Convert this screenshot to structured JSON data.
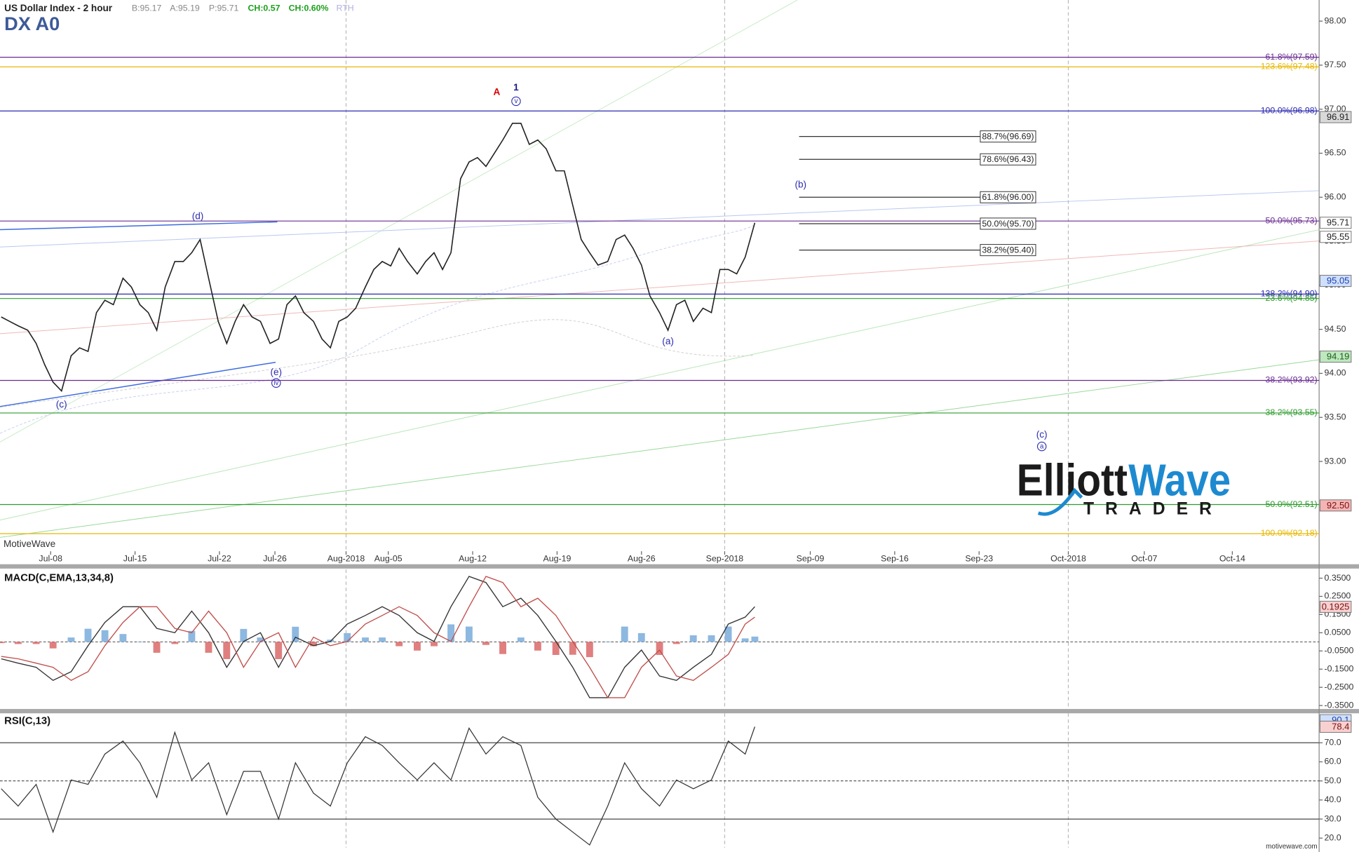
{
  "header": {
    "title": "US Dollar Index - 2 hour",
    "bid": "B:95.17",
    "ask": "A:95.19",
    "price": "P:95.71",
    "change": "CH:0.57",
    "change_pct": "CH:0.60%",
    "session": "RTH",
    "source": "MotiveWave",
    "site": "motivewave.com"
  },
  "logo": {
    "word1": "Elliott",
    "word2": "Wave",
    "word3": "TRADER"
  },
  "chart_data": [
    {
      "type": "line",
      "title": "DX A0",
      "color": "#222222",
      "x": [
        -4.1,
        -3.4,
        -2.7,
        -1.9,
        -1.2,
        -0.5,
        0.2,
        0.9,
        1.7,
        2.4,
        3.1,
        3.8,
        4.5,
        5.2,
        6.0,
        6.7,
        7.4,
        8.1,
        8.8,
        9.5,
        10.3,
        11.0,
        11.7,
        12.4,
        13.1,
        13.9,
        14.6,
        15.3,
        16.0,
        16.7,
        17.4,
        18.2,
        18.9,
        19.6,
        20.3,
        21.0,
        21.8,
        22.5,
        23.2,
        23.9,
        24.6,
        25.3,
        26.1,
        26.8,
        27.5,
        28.2,
        28.9,
        29.6,
        30.4,
        31.1,
        31.8,
        32.5,
        33.2,
        34.0,
        34.7,
        35.4,
        36.1,
        36.8,
        37.5,
        38.3,
        39.0,
        39.7,
        40.4,
        41.1,
        41.9,
        42.6,
        43.3,
        44.0,
        44.7,
        45.4,
        46.2,
        46.9,
        47.6,
        48.3,
        49.0,
        49.7,
        50.5,
        51.2,
        51.9,
        52.6,
        53.3,
        54.1,
        54.8,
        55.5,
        56.2,
        56.9,
        57.6,
        58.4
      ],
      "values": [
        94.64,
        94.59,
        94.54,
        94.49,
        94.34,
        94.1,
        93.9,
        93.8,
        94.2,
        94.29,
        94.25,
        94.69,
        94.83,
        94.78,
        95.08,
        94.98,
        94.78,
        94.69,
        94.49,
        94.98,
        95.27,
        95.27,
        95.37,
        95.52,
        95.08,
        94.59,
        94.34,
        94.59,
        94.78,
        94.64,
        94.59,
        94.34,
        94.39,
        94.78,
        94.88,
        94.69,
        94.59,
        94.39,
        94.29,
        94.59,
        94.64,
        94.74,
        94.98,
        95.18,
        95.27,
        95.22,
        95.42,
        95.27,
        95.13,
        95.27,
        95.37,
        95.18,
        95.37,
        96.21,
        96.4,
        96.45,
        96.35,
        96.5,
        96.65,
        96.84,
        96.84,
        96.6,
        96.65,
        96.55,
        96.3,
        96.3,
        95.91,
        95.52,
        95.37,
        95.23,
        95.27,
        95.52,
        95.57,
        95.42,
        95.23,
        94.88,
        94.69,
        94.49,
        94.78,
        94.83,
        94.59,
        94.74,
        94.69,
        95.18,
        95.18,
        95.13,
        95.32,
        95.71
      ],
      "xlim": [
        -4.2,
        105.2
      ],
      "xticks": [
        {
          "value": 0,
          "label": "Jul-08"
        },
        {
          "value": 7,
          "label": "Jul-15"
        },
        {
          "value": 14,
          "label": "Jul-22"
        },
        {
          "value": 18.6,
          "label": "Jul-26"
        },
        {
          "value": 24.5,
          "label": "Aug-2018"
        },
        {
          "value": 28,
          "label": "Aug-05"
        },
        {
          "value": 35,
          "label": "Aug-12"
        },
        {
          "value": 42,
          "label": "Aug-19"
        },
        {
          "value": 49,
          "label": "Aug-26"
        },
        {
          "value": 55.9,
          "label": "Sep-2018"
        },
        {
          "value": 63,
          "label": "Sep-09"
        },
        {
          "value": 70,
          "label": "Sep-16"
        },
        {
          "value": 77,
          "label": "Sep-23"
        },
        {
          "value": 84.4,
          "label": "Oct-2018"
        },
        {
          "value": 90.7,
          "label": "Oct-07"
        },
        {
          "value": 98,
          "label": "Oct-14"
        }
      ],
      "ylim": [
        91.98,
        98.22
      ],
      "yticks": [
        {
          "value": 93,
          "label": "93.00"
        },
        {
          "value": 93.5,
          "label": "93.50"
        },
        {
          "value": 94,
          "label": "94.00"
        },
        {
          "value": 94.5,
          "label": "94.50"
        },
        {
          "value": 95,
          "label": "95.00"
        },
        {
          "value": 95.5,
          "label": "95.50"
        },
        {
          "value": 96,
          "label": "96.00"
        },
        {
          "value": 96.5,
          "label": "96.50"
        },
        {
          "value": 97,
          "label": "97.00"
        },
        {
          "value": 97.5,
          "label": "97.50"
        },
        {
          "value": 98,
          "label": "98.00"
        }
      ],
      "levels": [
        {
          "value": 97.59,
          "label": "61.8%(97.59)",
          "color": "#6a2c91"
        },
        {
          "value": 97.48,
          "label": "123.6%(97.48)",
          "color": "#e8b800"
        },
        {
          "value": 96.98,
          "label": "100.0%(96.98)",
          "color": "#2b2bb0"
        },
        {
          "value": 95.73,
          "label": "50.0%(95.73)",
          "color": "#6a2c91"
        },
        {
          "value": 94.9,
          "label": "138.2%(94.90)",
          "color": "#2b2bb0"
        },
        {
          "value": 94.85,
          "label": "23.6%(94.85)",
          "color": "#2e9b2e"
        },
        {
          "value": 93.92,
          "label": "38.2%(93.92)",
          "color": "#6a2c91"
        },
        {
          "value": 93.55,
          "label": "38.2%(93.55)",
          "color": "#2e9b2e"
        },
        {
          "value": 92.51,
          "label": "50.0%(92.51)",
          "color": "#2e9b2e"
        },
        {
          "value": 92.18,
          "label": "100.0%(92.18)",
          "color": "#e8b800"
        }
      ],
      "targets": [
        {
          "value": 96.69,
          "label": "88.7%(96.69)"
        },
        {
          "value": 96.43,
          "label": "78.6%(96.43)"
        },
        {
          "value": 96.0,
          "label": "61.8%(96.00)"
        },
        {
          "value": 95.7,
          "label": "50.0%(95.70)"
        },
        {
          "value": 95.4,
          "label": "38.2%(95.40)"
        }
      ],
      "price_tags": [
        {
          "value": 96.91,
          "label": "96.91",
          "color": "#d9d9d9",
          "text_color": "#222222"
        },
        {
          "value": 95.71,
          "label": "95.71",
          "color": "#ffffff",
          "text_color": "#222222"
        },
        {
          "value": 95.55,
          "label": "95.55",
          "color": "#ffffff",
          "text_color": "#222222"
        },
        {
          "value": 95.05,
          "label": "95.05",
          "color": "#cfe0ff",
          "text_color": "#1f3fa8"
        },
        {
          "value": 94.19,
          "label": "94.19",
          "color": "#bfe8bf",
          "text_color": "#1c5e1c"
        },
        {
          "value": 92.5,
          "label": "92.50",
          "color": "#f4b4b4",
          "text_color": "#7a1010"
        }
      ],
      "annotations": [
        {
          "text": "A",
          "x": 37.0,
          "y": 97.19,
          "color": "#dd0000",
          "circled": false
        },
        {
          "text": "1",
          "x": 38.6,
          "y": 97.24,
          "color": "#1a1a8c",
          "circled": false
        },
        {
          "text": "v",
          "x": 38.6,
          "y": 97.09,
          "color": "#2b2bb0",
          "circled": true
        },
        {
          "text": "(d)",
          "x": 12.2,
          "y": 95.78,
          "color": "#2b2bb0",
          "circled": false
        },
        {
          "text": "(c)",
          "x": 0.9,
          "y": 93.64,
          "color": "#2b2bb0",
          "circled": false
        },
        {
          "text": "(e)",
          "x": 18.7,
          "y": 94.01,
          "color": "#2b2bb0",
          "circled": false
        },
        {
          "text": "iv",
          "x": 18.7,
          "y": 93.89,
          "color": "#2b2bb0",
          "circled": true
        },
        {
          "text": "(a)",
          "x": 51.2,
          "y": 94.36,
          "color": "#2b2bb0",
          "circled": false
        },
        {
          "text": "(b)",
          "x": 62.2,
          "y": 96.14,
          "color": "#2b2bb0",
          "circled": false
        },
        {
          "text": "(c)",
          "x": 82.2,
          "y": 93.3,
          "color": "#2b2bb0",
          "circled": false
        },
        {
          "text": "a",
          "x": 82.2,
          "y": 93.17,
          "color": "#2b2bb0",
          "circled": true
        }
      ]
    },
    {
      "type": "macd",
      "title": "MACD(C,EMA,13,34,8)",
      "x": [
        -4.1,
        -2.7,
        -1.2,
        0.2,
        1.7,
        3.1,
        4.5,
        6.0,
        7.4,
        8.8,
        10.3,
        11.7,
        13.1,
        14.6,
        16.0,
        17.4,
        18.9,
        20.3,
        21.8,
        23.2,
        24.6,
        26.1,
        27.5,
        28.9,
        30.4,
        31.8,
        33.2,
        34.7,
        36.1,
        37.5,
        39.0,
        40.4,
        41.9,
        43.3,
        44.7,
        46.2,
        47.6,
        49.0,
        50.5,
        51.9,
        53.3,
        54.8,
        56.2,
        57.6,
        58.4
      ],
      "series": [
        {
          "color": "#333333",
          "values": [
            -0.093,
            -0.117,
            -0.14,
            -0.212,
            -0.164,
            -0.021,
            0.107,
            0.193,
            0.193,
            0.074,
            0.05,
            0.169,
            0.05,
            -0.14,
            0.002,
            0.05,
            -0.14,
            0.026,
            -0.021,
            0.002,
            0.098,
            0.145,
            0.193,
            0.145,
            0.05,
            0.002,
            0.193,
            0.36,
            0.326,
            0.193,
            0.24,
            0.145,
            0.002,
            -0.14,
            -0.307,
            -0.307,
            -0.14,
            -0.045,
            -0.188,
            -0.212,
            -0.14,
            -0.069,
            0.098,
            0.136,
            0.193
          ]
        },
        {
          "color": "#c0504d",
          "values": [
            -0.08,
            -0.093,
            -0.117,
            -0.14,
            -0.212,
            -0.164,
            -0.021,
            0.107,
            0.193,
            0.193,
            0.074,
            0.05,
            0.169,
            0.05,
            -0.14,
            0.002,
            0.05,
            -0.14,
            0.026,
            -0.021,
            0.002,
            0.098,
            0.145,
            0.193,
            0.145,
            0.05,
            0.002,
            0.193,
            0.36,
            0.326,
            0.193,
            0.24,
            0.145,
            0.002,
            -0.14,
            -0.307,
            -0.307,
            -0.14,
            -0.045,
            -0.188,
            -0.212,
            -0.14,
            -0.069,
            0.098,
            0.136
          ]
        }
      ],
      "histogram": {
        "positive_color": "#8db8e0",
        "negative_color": "#e07f7f",
        "values": [
          -0.007,
          -0.012,
          -0.012,
          -0.036,
          0.024,
          0.072,
          0.064,
          0.043,
          0,
          -0.06,
          -0.012,
          0.06,
          -0.06,
          -0.095,
          0.071,
          0.024,
          -0.095,
          0.083,
          -0.024,
          0.012,
          0.048,
          0.024,
          0.024,
          -0.024,
          -0.048,
          -0.024,
          0.096,
          0.084,
          -0.017,
          -0.067,
          0.024,
          -0.048,
          -0.072,
          -0.071,
          -0.084,
          0,
          0.084,
          0.048,
          -0.072,
          -0.012,
          0.036,
          0.036,
          0.084,
          0.019,
          0.029
        ]
      },
      "ylim": [
        -0.369,
        0.398
      ],
      "yticks": [
        {
          "value": -0.35,
          "label": "-0.3500"
        },
        {
          "value": -0.25,
          "label": "-0.2500"
        },
        {
          "value": -0.15,
          "label": "-0.1500"
        },
        {
          "value": -0.05,
          "label": "-0.0500"
        },
        {
          "value": 0.05,
          "label": "0.0500"
        },
        {
          "value": 0.15,
          "label": "0.1500"
        },
        {
          "value": 0.25,
          "label": "0.2500"
        },
        {
          "value": 0.35,
          "label": "0.3500"
        }
      ],
      "price_tags": [
        {
          "value": 0.1925,
          "label": "0.1925",
          "color": "#f8d0d0",
          "text_color": "#7a1010"
        }
      ]
    },
    {
      "type": "rsi",
      "title": "RSI(C,13)",
      "color": "#333333",
      "x": [
        -4.1,
        -2.7,
        -1.2,
        0.2,
        1.7,
        3.1,
        4.5,
        6.0,
        7.4,
        8.8,
        10.3,
        11.7,
        13.1,
        14.6,
        16.0,
        17.4,
        18.9,
        20.3,
        21.8,
        23.2,
        24.6,
        26.1,
        27.5,
        28.9,
        30.4,
        31.8,
        33.2,
        34.7,
        36.1,
        37.5,
        39.0,
        40.4,
        41.9,
        43.3,
        44.7,
        46.2,
        47.6,
        49.0,
        50.5,
        51.9,
        53.3,
        54.8,
        56.2,
        57.6,
        58.4
      ],
      "values": [
        45.9,
        36.8,
        48.2,
        23.2,
        50.5,
        48.2,
        64.1,
        70.9,
        59.5,
        41.4,
        75.5,
        50.5,
        59.5,
        32.3,
        55.0,
        55.0,
        30.0,
        59.5,
        43.6,
        36.8,
        59.5,
        73.2,
        68.6,
        59.5,
        50.5,
        59.5,
        50.5,
        77.7,
        64.1,
        73.2,
        68.6,
        41.4,
        30.0,
        23.2,
        16.4,
        36.8,
        59.5,
        45.9,
        36.8,
        50.5,
        45.9,
        50.5,
        70.9,
        64.1,
        78.4
      ],
      "ylim": [
        15,
        85.45
      ],
      "yticks": [
        {
          "value": 20,
          "label": "20.0"
        },
        {
          "value": 30,
          "label": "30.0"
        },
        {
          "value": 40,
          "label": "40.0"
        },
        {
          "value": 50,
          "label": "50.0"
        },
        {
          "value": 60,
          "label": "60.0"
        },
        {
          "value": 70,
          "label": "70.0"
        }
      ],
      "levels": [
        {
          "value": 70,
          "dashed": false
        },
        {
          "value": 50,
          "dashed": true
        },
        {
          "value": 30,
          "dashed": false
        }
      ],
      "price_tags": [
        {
          "value": 90.1,
          "label": "90.1",
          "color": "#cfe0ff",
          "text_color": "#1f3fa8"
        },
        {
          "value": 78.4,
          "label": "78.4",
          "color": "#f8d0d0",
          "text_color": "#7a1010"
        }
      ]
    }
  ]
}
